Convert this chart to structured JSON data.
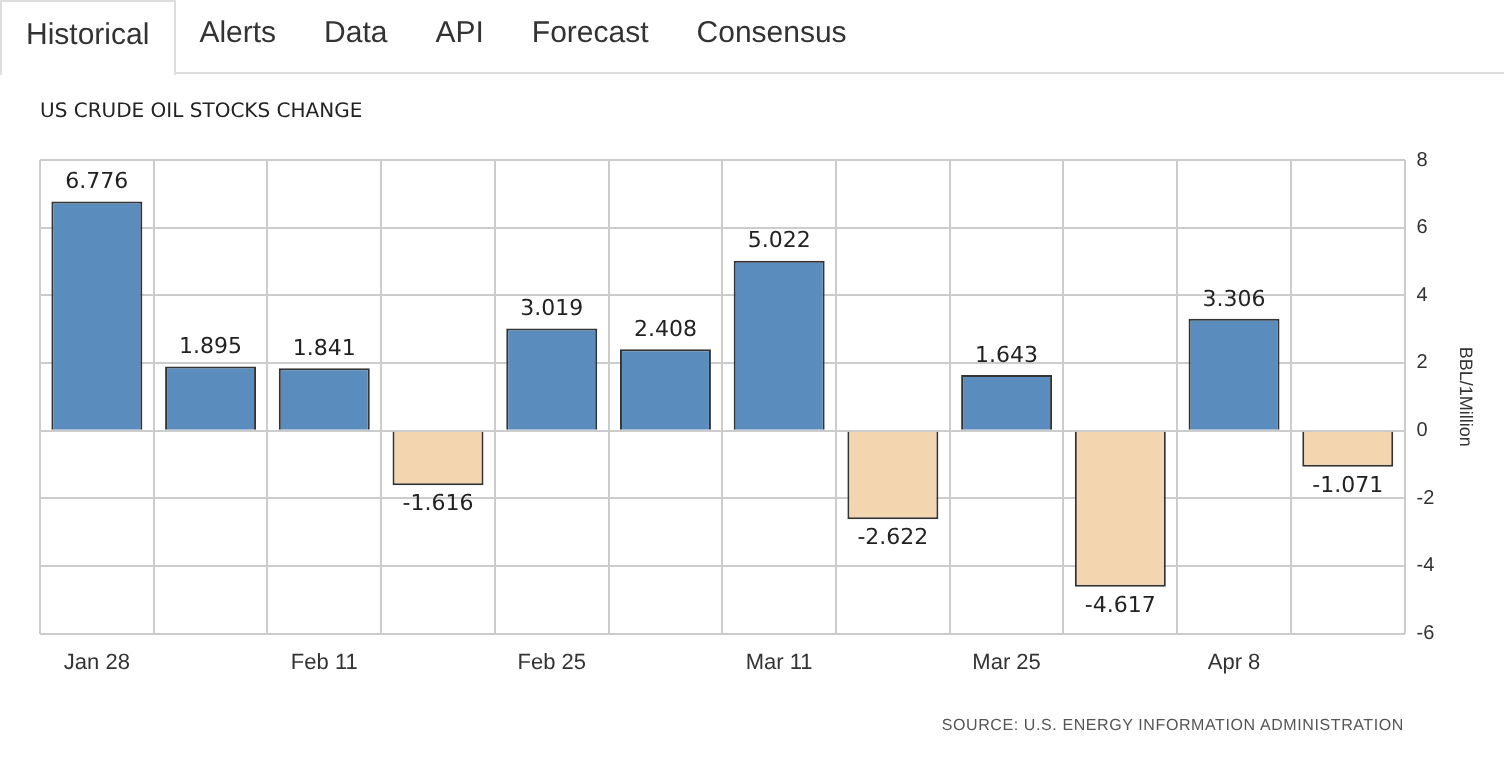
{
  "chart_data": {
    "type": "bar",
    "title": "US CRUDE OIL STOCKS CHANGE",
    "ylabel": "BBL/1Million",
    "annotations": [
      "Historical",
      "Alerts",
      "Data",
      "API",
      "Forecast",
      "Consensus",
      "SOURCE: U.S. ENERGY INFORMATION ADMINISTRATION"
    ],
    "categories": [
      "Jan 28",
      null,
      "Feb 11",
      null,
      "Feb 25",
      null,
      "Mar 11",
      null,
      "Mar 25",
      null,
      "Apr 8",
      null
    ],
    "values": [
      6.776,
      1.895,
      1.841,
      -1.616,
      3.019,
      2.408,
      5.022,
      -2.622,
      1.643,
      -4.617,
      3.306,
      -1.071
    ],
    "colors": [
      "#5a8cbd",
      "#5a8cbd",
      "#5a8cbd",
      "#f3d6b0",
      "#5a8cbd",
      "#5a8cbd",
      "#5a8cbd",
      "#f3d6b0",
      "#5a8cbd",
      "#f3d6b0",
      "#5a8cbd",
      "#f3d6b0"
    ],
    "ylim": [
      -6,
      8
    ],
    "yticks": [
      -6,
      -4,
      -2,
      0,
      2,
      4,
      6,
      8
    ],
    "grid": true,
    "legend": false,
    "data_labels": true
  }
}
